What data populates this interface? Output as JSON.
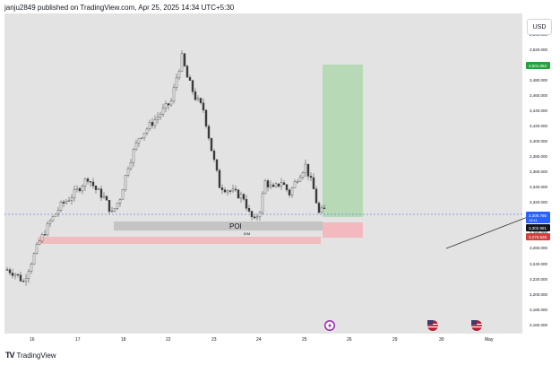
{
  "header": {
    "publish_text": "janju2849 published on TradingView.com, Apr 25, 2025 14:34 UTC+5:30"
  },
  "footer": {
    "logo_text": "TradingView"
  },
  "currency_button": "USD",
  "price_axis_labels": [
    "3,540.000",
    "3,520.000",
    "3,500.000",
    "3,480.000",
    "3,460.000",
    "3,440.000",
    "3,420.000",
    "3,400.000",
    "3,380.000",
    "3,360.000",
    "3,340.000",
    "3,320.000",
    "3,300.000",
    "3,280.000",
    "3,260.000",
    "3,240.000",
    "3,220.000",
    "3,200.000",
    "3,180.000",
    "3,160.000"
  ],
  "time_axis_labels": [
    "16",
    "17",
    "18",
    "22",
    "23",
    "24",
    "25",
    "26",
    "29",
    "30",
    "May"
  ],
  "price_tags": {
    "target": "3,501.863",
    "current": "3,305.785",
    "current_sub": "15:11",
    "entry": "3,302.981",
    "stop": "3,276.528"
  },
  "annotations": {
    "poi_label": "POI",
    "small_label": "IDM"
  },
  "colors": {
    "chart_bg": "#e3e3e3",
    "candle": "#3a3a3a",
    "target_zone": "#b7d9b5",
    "stop_zone": "#f3b9be",
    "poi_zone": "#c4c4c4",
    "lower_zone": "#f0bcbe",
    "current_price": "#2962ff",
    "target_tag": "#26a13c",
    "stop_tag": "#d93d3d"
  },
  "icons": {
    "event_lightning": "lightning-icon",
    "event_flag_1": "us-flag-icon",
    "event_flag_2": "us-flag-icon"
  },
  "chart_data": {
    "type": "candlestick",
    "instrument_currency": "USD",
    "ylim": [
      3150,
      3550
    ],
    "close_path": [
      {
        "t": 0,
        "p": 3230
      },
      {
        "t": 3,
        "p": 3225
      },
      {
        "t": 6,
        "p": 3215
      },
      {
        "t": 9,
        "p": 3240
      },
      {
        "t": 12,
        "p": 3265
      },
      {
        "t": 16,
        "p": 3290
      },
      {
        "t": 20,
        "p": 3310
      },
      {
        "t": 25,
        "p": 3325
      },
      {
        "t": 30,
        "p": 3345
      },
      {
        "t": 33,
        "p": 3330
      },
      {
        "t": 36,
        "p": 3320
      },
      {
        "t": 39,
        "p": 3300
      },
      {
        "t": 42,
        "p": 3320
      },
      {
        "t": 45,
        "p": 3360
      },
      {
        "t": 49,
        "p": 3395
      },
      {
        "t": 53,
        "p": 3410
      },
      {
        "t": 57,
        "p": 3425
      },
      {
        "t": 61,
        "p": 3440
      },
      {
        "t": 63,
        "p": 3470
      },
      {
        "t": 65,
        "p": 3495
      },
      {
        "t": 67,
        "p": 3470
      },
      {
        "t": 70,
        "p": 3445
      },
      {
        "t": 73,
        "p": 3430
      },
      {
        "t": 76,
        "p": 3380
      },
      {
        "t": 79,
        "p": 3335
      },
      {
        "t": 82,
        "p": 3330
      },
      {
        "t": 85,
        "p": 3325
      },
      {
        "t": 88,
        "p": 3320
      },
      {
        "t": 90,
        "p": 3300
      },
      {
        "t": 92,
        "p": 3290
      },
      {
        "t": 94,
        "p": 3305
      },
      {
        "t": 96,
        "p": 3340
      },
      {
        "t": 99,
        "p": 3330
      },
      {
        "t": 102,
        "p": 3340
      },
      {
        "t": 105,
        "p": 3325
      },
      {
        "t": 108,
        "p": 3345
      },
      {
        "t": 111,
        "p": 3360
      },
      {
        "t": 114,
        "p": 3330
      },
      {
        "t": 116,
        "p": 3300
      },
      {
        "t": 118,
        "p": 3305
      }
    ]
  }
}
